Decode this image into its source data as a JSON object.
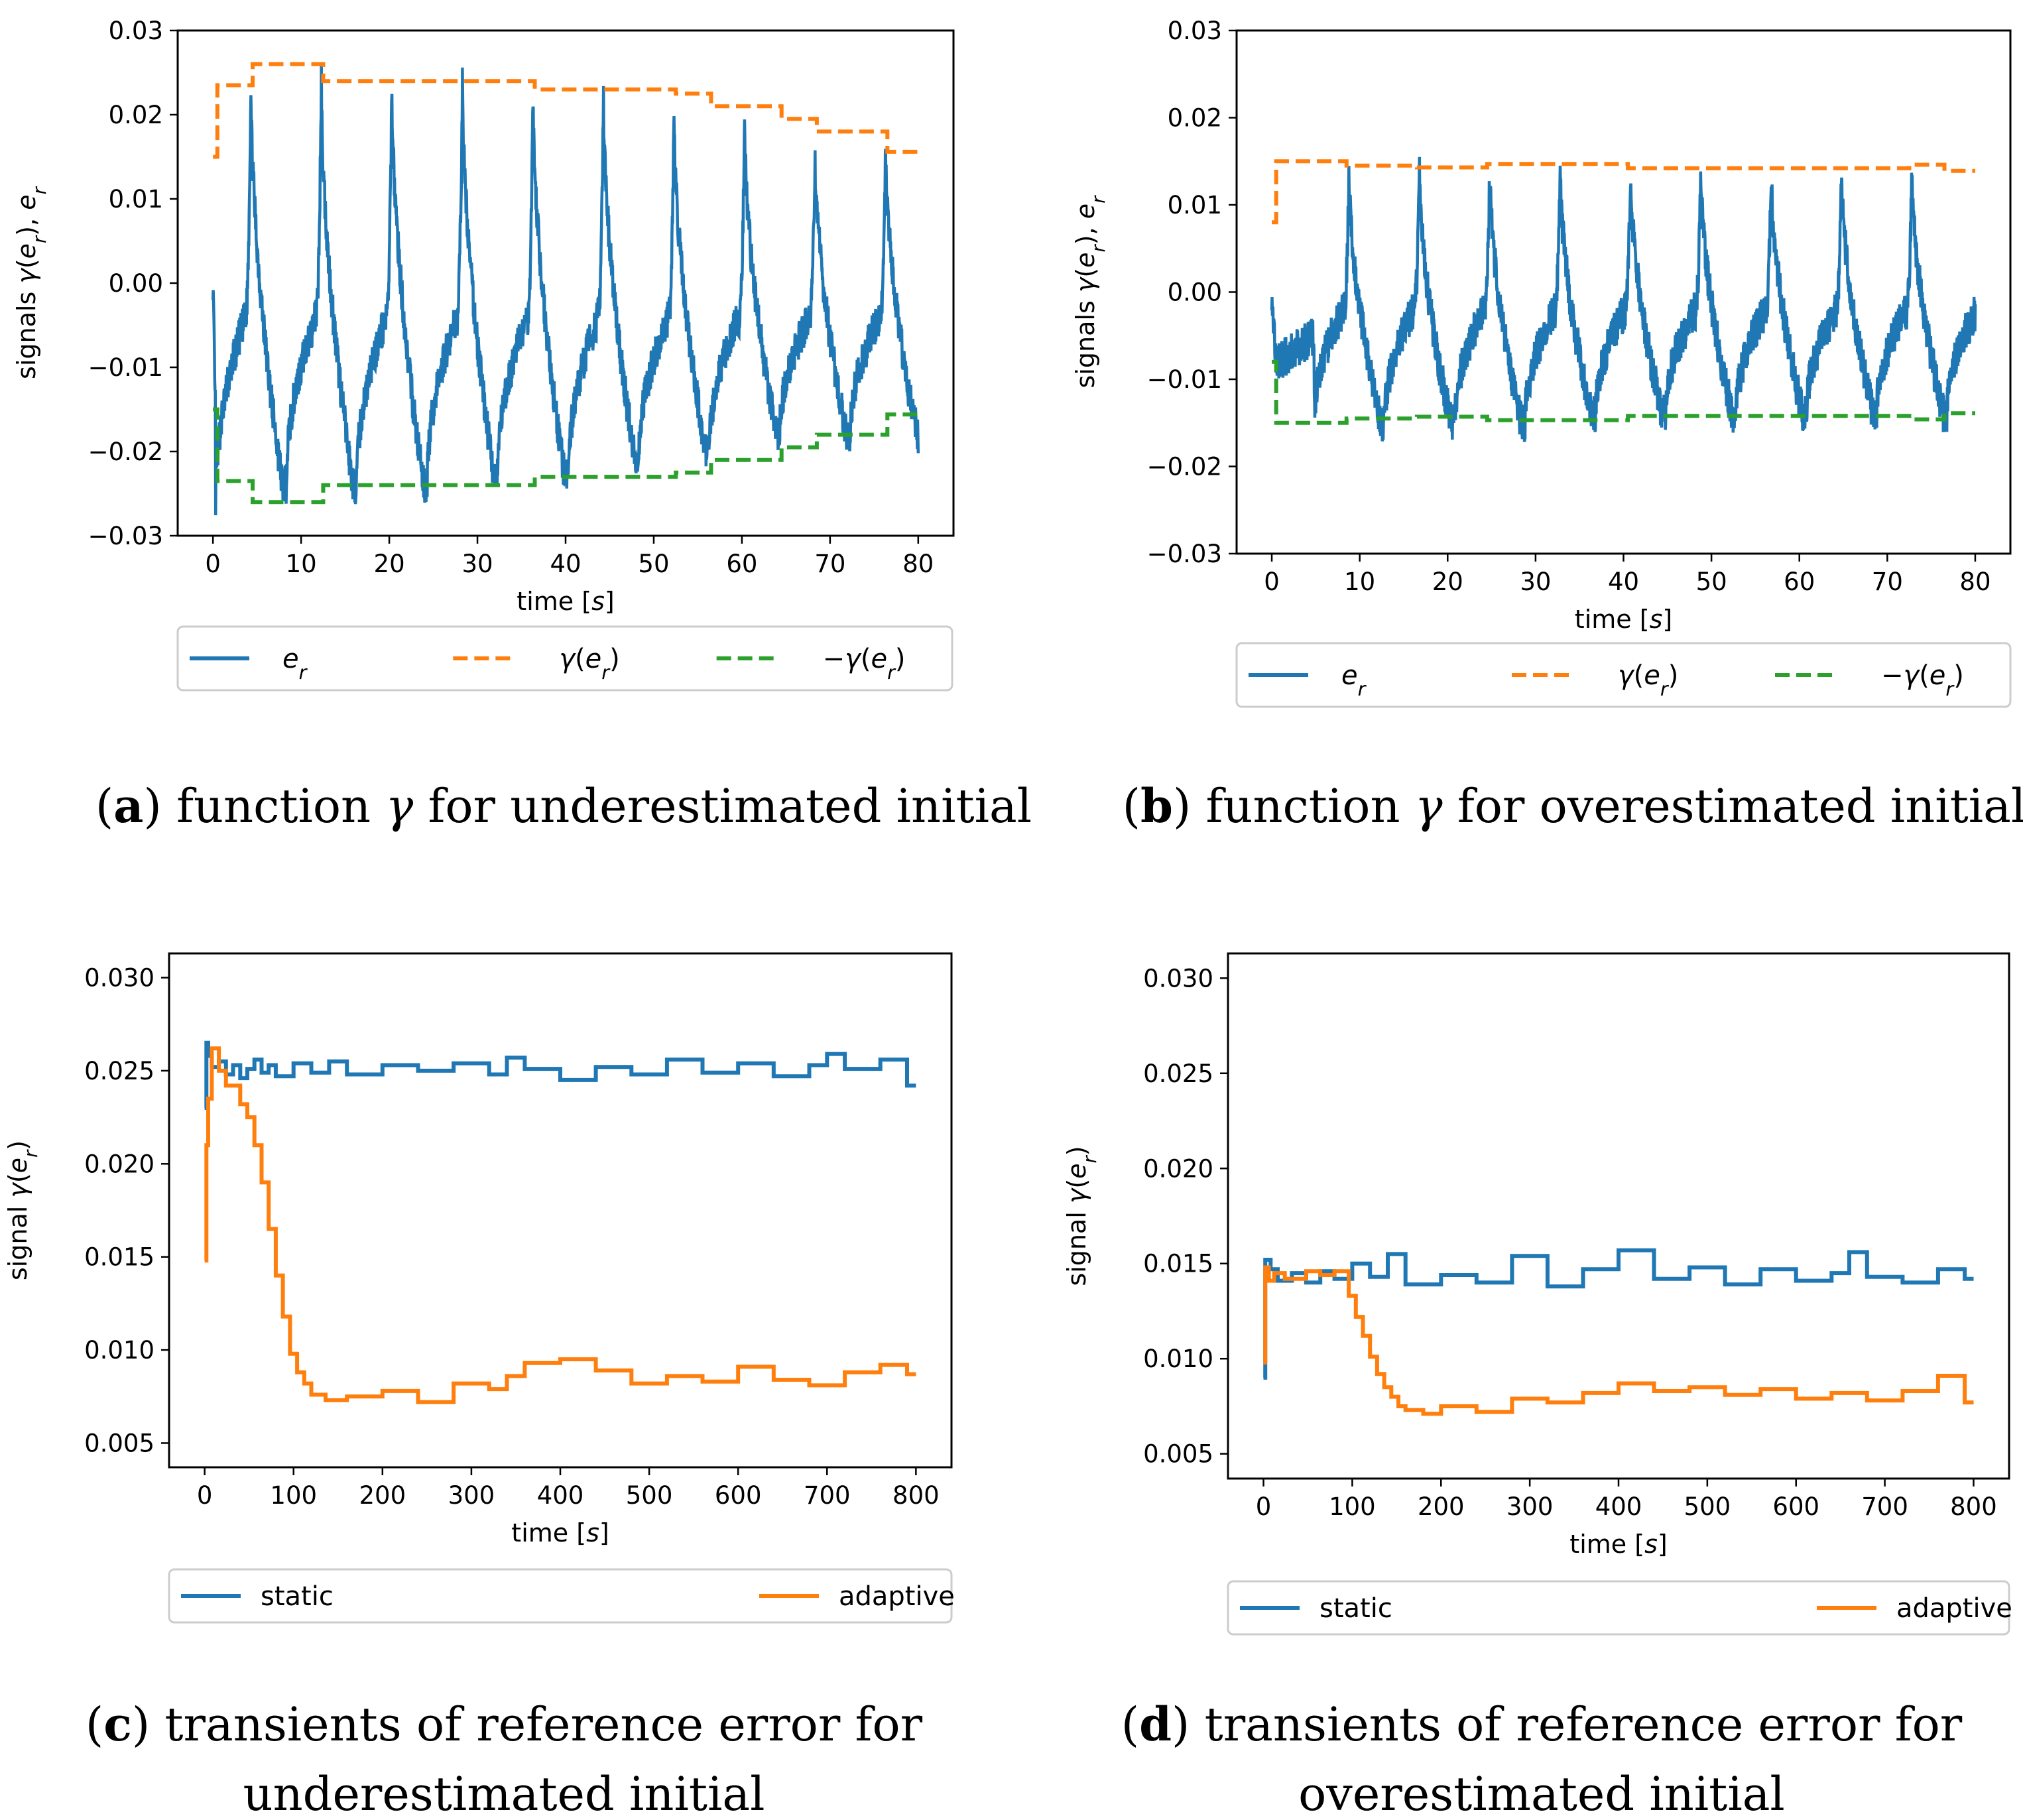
{
  "colors": {
    "blue": "#1f77b4",
    "orange": "#ff7f0e",
    "green": "#2ca02c"
  },
  "chart_data": [
    {
      "id": "a",
      "type": "line",
      "caption": {
        "letter": "a",
        "text": "function γ for underestimated initial",
        "line1": "function γ for underestimated initial",
        "line2": ""
      },
      "xlabel": "time [s]",
      "ylabel": "signals γ(e_r), e_r",
      "xlim": [
        -4,
        84
      ],
      "ylim": [
        -0.03,
        0.03
      ],
      "xticks": [
        0,
        10,
        20,
        30,
        40,
        50,
        60,
        70,
        80
      ],
      "xtick_labels": [
        "0",
        "10",
        "20",
        "30",
        "40",
        "50",
        "60",
        "70",
        "80"
      ],
      "yticks": [
        -0.03,
        -0.02,
        -0.01,
        0.0,
        0.01,
        0.02,
        0.03
      ],
      "ytick_labels": [
        "−0.03",
        "−0.02",
        "−0.01",
        "0.00",
        "0.01",
        "0.02",
        "0.03"
      ],
      "legend": [
        "e_r",
        "γ(e_r)",
        "−γ(e_r)"
      ],
      "series": [
        {
          "name": "e_r",
          "style": "solid",
          "kind": "oscillation",
          "x_range": [
            0,
            80
          ],
          "period": 8,
          "first_peak": 4.3,
          "peaks": [
            0.024,
            0.024,
            0.024,
            0.024,
            0.023,
            0.022,
            0.02,
            0.019,
            0.016
          ],
          "troughs": [
            -0.026,
            -0.024,
            -0.024,
            -0.024,
            -0.023,
            -0.023,
            -0.021,
            -0.02,
            -0.018
          ],
          "baseline": -0.004
        },
        {
          "name": "γ(e_r)",
          "style": "dashed",
          "kind": "steps",
          "x": [
            0,
            0.5,
            4.5,
            12.5,
            36.5,
            52.5,
            56.5,
            64.5,
            68.5,
            76.5,
            80
          ],
          "values": [
            0.015,
            0.0235,
            0.026,
            0.024,
            0.023,
            0.0225,
            0.021,
            0.0195,
            0.018,
            0.0156,
            0.0156
          ]
        },
        {
          "name": "−γ(e_r)",
          "style": "dashed",
          "kind": "steps",
          "x": [
            0,
            0.5,
            4.5,
            12.5,
            36.5,
            52.5,
            56.5,
            64.5,
            68.5,
            76.5,
            80
          ],
          "values": [
            -0.015,
            -0.0235,
            -0.026,
            -0.024,
            -0.023,
            -0.0225,
            -0.021,
            -0.0195,
            -0.018,
            -0.0156,
            -0.0156
          ]
        }
      ]
    },
    {
      "id": "b",
      "type": "line",
      "caption": {
        "letter": "b",
        "text": "function γ for overestimated initial",
        "line1": "function γ for overestimated initial",
        "line2": ""
      },
      "xlabel": "time [s]",
      "ylabel": "signals γ(e_r), e_r",
      "xlim": [
        -4,
        84
      ],
      "ylim": [
        -0.03,
        0.03
      ],
      "xticks": [
        0,
        10,
        20,
        30,
        40,
        50,
        60,
        70,
        80
      ],
      "xtick_labels": [
        "0",
        "10",
        "20",
        "30",
        "40",
        "50",
        "60",
        "70",
        "80"
      ],
      "yticks": [
        -0.03,
        -0.02,
        -0.01,
        0.0,
        0.01,
        0.02,
        0.03
      ],
      "ytick_labels": [
        "−0.03",
        "−0.02",
        "−0.01",
        "0.00",
        "0.01",
        "0.02",
        "0.03"
      ],
      "legend": [
        "e_r",
        "γ(e_r)",
        "−γ(e_r)"
      ],
      "series": [
        {
          "name": "e_r",
          "style": "solid",
          "kind": "oscillation",
          "x_range": [
            0,
            80
          ],
          "period": 8,
          "first_peak": 8.8,
          "peaks": [
            0.014,
            0.014,
            0.014,
            0.014,
            0.014,
            0.014,
            0.014,
            0.014,
            0.014
          ],
          "troughs": [
            -0.015,
            -0.015,
            -0.015,
            -0.015,
            -0.014,
            -0.014,
            -0.014,
            -0.014,
            -0.014,
            -0.014
          ],
          "baseline": -0.002
        },
        {
          "name": "γ(e_r)",
          "style": "dashed",
          "kind": "steps",
          "x": [
            0,
            0.5,
            8.5,
            16.5,
            24.5,
            40.5,
            72.5,
            76.5,
            80
          ],
          "values": [
            0.008,
            0.015,
            0.0145,
            0.0143,
            0.0147,
            0.0142,
            0.0146,
            0.0139,
            0.0139
          ]
        },
        {
          "name": "−γ(e_r)",
          "style": "dashed",
          "kind": "steps",
          "x": [
            0,
            0.5,
            8.5,
            16.5,
            24.5,
            40.5,
            72.5,
            76.5,
            80
          ],
          "values": [
            -0.008,
            -0.015,
            -0.0145,
            -0.0143,
            -0.0147,
            -0.0142,
            -0.0146,
            -0.0139,
            -0.0139
          ]
        }
      ]
    },
    {
      "id": "c",
      "type": "line",
      "caption": {
        "letter": "c",
        "text": "transients of reference error for underestimated initial",
        "line1": "transients of reference error for",
        "line2": "underestimated initial"
      },
      "xlabel": "time [s]",
      "ylabel": "signal γ(e_r)",
      "xlim": [
        -40,
        840
      ],
      "ylim": [
        0.0037,
        0.0313
      ],
      "xticks": [
        0,
        100,
        200,
        300,
        400,
        500,
        600,
        700,
        800
      ],
      "xtick_labels": [
        "0",
        "100",
        "200",
        "300",
        "400",
        "500",
        "600",
        "700",
        "800"
      ],
      "yticks": [
        0.005,
        0.01,
        0.015,
        0.02,
        0.025,
        0.03
      ],
      "ytick_labels": [
        "0.005",
        "0.010",
        "0.015",
        "0.020",
        "0.025",
        "0.030"
      ],
      "legend": [
        "static",
        "adaptive"
      ],
      "series": [
        {
          "name": "static",
          "style": "solid",
          "kind": "steps",
          "x": [
            0,
            2,
            4,
            8,
            16,
            24,
            32,
            40,
            48,
            56,
            64,
            72,
            80,
            100,
            120,
            140,
            160,
            200,
            240,
            280,
            320,
            340,
            360,
            400,
            440,
            480,
            520,
            560,
            600,
            640,
            680,
            700,
            720,
            760,
            790,
            800
          ],
          "values": [
            0.023,
            0.0265,
            0.0258,
            0.0252,
            0.0255,
            0.0248,
            0.0253,
            0.0246,
            0.0251,
            0.0256,
            0.0249,
            0.0253,
            0.0247,
            0.0254,
            0.0249,
            0.0255,
            0.0248,
            0.0253,
            0.025,
            0.0254,
            0.0248,
            0.0257,
            0.0251,
            0.0245,
            0.0252,
            0.0248,
            0.0256,
            0.0249,
            0.0254,
            0.0247,
            0.0253,
            0.0259,
            0.0251,
            0.0256,
            0.0242,
            0.0242
          ]
        },
        {
          "name": "adaptive",
          "style": "solid",
          "kind": "steps",
          "x": [
            0,
            2,
            4,
            8,
            16,
            24,
            40,
            48,
            56,
            64,
            72,
            80,
            88,
            96,
            104,
            112,
            120,
            136,
            160,
            200,
            240,
            280,
            320,
            340,
            360,
            400,
            440,
            480,
            520,
            560,
            600,
            640,
            680,
            720,
            760,
            790,
            800
          ],
          "values": [
            0.0148,
            0.021,
            0.0235,
            0.0262,
            0.025,
            0.0242,
            0.0232,
            0.0225,
            0.021,
            0.019,
            0.0165,
            0.014,
            0.0118,
            0.0098,
            0.0088,
            0.0082,
            0.0076,
            0.0073,
            0.0075,
            0.0078,
            0.0072,
            0.0082,
            0.0079,
            0.0086,
            0.0093,
            0.0095,
            0.0089,
            0.0082,
            0.0086,
            0.0083,
            0.0091,
            0.0084,
            0.0081,
            0.0088,
            0.0092,
            0.0087,
            0.0087
          ]
        }
      ]
    },
    {
      "id": "d",
      "type": "line",
      "caption": {
        "letter": "d",
        "text": "transients of reference error for overestimated initial",
        "line1": "transients of reference error for",
        "line2": "overestimated initial"
      },
      "xlabel": "time [s]",
      "ylabel": "signal γ(e_r)",
      "xlim": [
        -40,
        840
      ],
      "ylim": [
        0.0037,
        0.0313
      ],
      "xticks": [
        0,
        100,
        200,
        300,
        400,
        500,
        600,
        700,
        800
      ],
      "xtick_labels": [
        "0",
        "100",
        "200",
        "300",
        "400",
        "500",
        "600",
        "700",
        "800"
      ],
      "yticks": [
        0.005,
        0.01,
        0.015,
        0.02,
        0.025,
        0.03
      ],
      "ytick_labels": [
        "0.005",
        "0.010",
        "0.015",
        "0.020",
        "0.025",
        "0.030"
      ],
      "legend": [
        "static",
        "adaptive"
      ],
      "series": [
        {
          "name": "static",
          "style": "solid",
          "kind": "steps",
          "x": [
            0,
            2,
            8,
            16,
            32,
            48,
            64,
            80,
            100,
            120,
            140,
            160,
            200,
            240,
            280,
            320,
            360,
            400,
            440,
            480,
            520,
            560,
            600,
            640,
            660,
            680,
            720,
            760,
            790,
            800
          ],
          "values": [
            0.009,
            0.0152,
            0.0147,
            0.0141,
            0.0145,
            0.014,
            0.0146,
            0.0142,
            0.015,
            0.0143,
            0.0155,
            0.0139,
            0.0144,
            0.014,
            0.0154,
            0.0138,
            0.0147,
            0.0157,
            0.0142,
            0.0148,
            0.0139,
            0.0147,
            0.0141,
            0.0145,
            0.0156,
            0.0143,
            0.014,
            0.0147,
            0.0142,
            0.0142
          ]
        },
        {
          "name": "adaptive",
          "style": "solid",
          "kind": "steps",
          "x": [
            0,
            2,
            6,
            12,
            24,
            48,
            64,
            80,
            96,
            104,
            112,
            120,
            128,
            136,
            144,
            152,
            160,
            180,
            200,
            240,
            280,
            320,
            360,
            400,
            440,
            480,
            520,
            560,
            600,
            640,
            680,
            720,
            760,
            790,
            800
          ],
          "values": [
            0.0098,
            0.0148,
            0.0141,
            0.0145,
            0.0142,
            0.0146,
            0.0144,
            0.0146,
            0.0133,
            0.0122,
            0.0112,
            0.0101,
            0.0092,
            0.0085,
            0.008,
            0.0075,
            0.0073,
            0.0071,
            0.0075,
            0.0072,
            0.0079,
            0.0077,
            0.0082,
            0.0087,
            0.0083,
            0.0085,
            0.0081,
            0.0084,
            0.0079,
            0.0082,
            0.0078,
            0.0083,
            0.0091,
            0.0077,
            0.0077
          ]
        }
      ]
    }
  ]
}
